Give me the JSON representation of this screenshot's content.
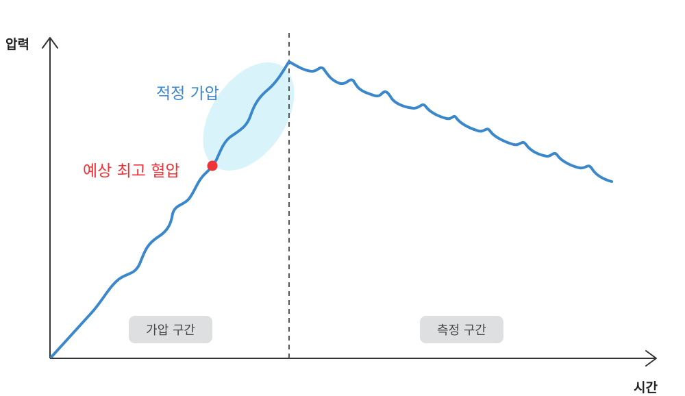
{
  "axes": {
    "y_label": "압력",
    "x_label": "시간"
  },
  "annotations": {
    "optimal_pressure": "적정 가압",
    "expected_max_bp": "예상 최고 혈압"
  },
  "zones": {
    "pressurize": "가압 구간",
    "measure": "측정 구간"
  },
  "colors": {
    "curve": "#3a87cc",
    "highlight_fill": "#d9f3fb",
    "marker": "#ee3237",
    "axis": "#333333",
    "divider": "#555555",
    "optimal_text": "#3a87cc",
    "expected_text": "#ee3237"
  }
}
